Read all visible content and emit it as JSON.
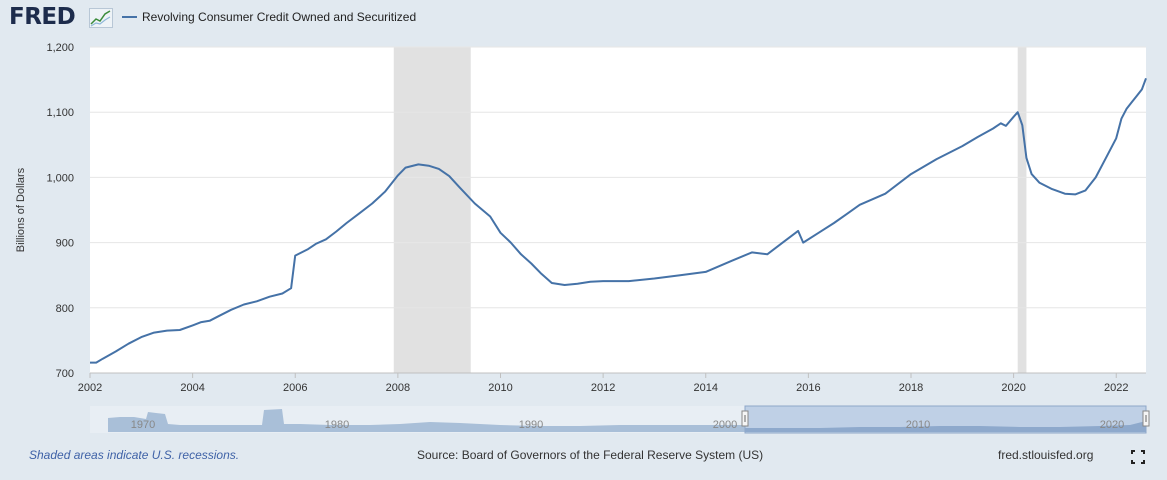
{
  "header": {
    "logo_text": "FRED",
    "logo_icon": "line-graph-icon",
    "legend_label": "Revolving Consumer Credit Owned and Securitized",
    "series_color": "#4572a7"
  },
  "footer": {
    "recession_note": "Shaded areas indicate U.S. recessions.",
    "source": "Source: Board of Governors of the Federal Reserve System (US)",
    "url": "fred.stlouisfed.org",
    "fullscreen_icon": "fullscreen-icon"
  },
  "navigator": {
    "tick_labels": [
      "1970",
      "1980",
      "1990",
      "2000",
      "2010",
      "2020"
    ]
  },
  "chart_data": {
    "type": "line",
    "title": "",
    "xlabel": "",
    "ylabel": "Billions of Dollars",
    "xlim": [
      2002.0,
      2022.58
    ],
    "ylim": [
      700,
      1200
    ],
    "x_ticks": [
      2002,
      2004,
      2006,
      2008,
      2010,
      2012,
      2014,
      2016,
      2018,
      2020,
      2022
    ],
    "y_ticks": [
      700,
      800,
      900,
      1000,
      1100,
      1200
    ],
    "y_tick_labels": [
      "700",
      "800",
      "900",
      "1,000",
      "1,100",
      "1,200"
    ],
    "grid": true,
    "legend": "top-left",
    "recessions": [
      [
        2007.92,
        2009.42
      ],
      [
        2020.08,
        2020.25
      ]
    ],
    "series": [
      {
        "name": "Revolving Consumer Credit Owned and Securitized",
        "color": "#4572a7",
        "x": [
          2002.0,
          2002.12,
          2002.25,
          2002.5,
          2002.75,
          2003.0,
          2003.25,
          2003.5,
          2003.75,
          2004.0,
          2004.17,
          2004.33,
          2004.5,
          2004.75,
          2005.0,
          2005.25,
          2005.5,
          2005.75,
          2005.92,
          2006.0,
          2006.25,
          2006.4,
          2006.6,
          2006.8,
          2007.0,
          2007.25,
          2007.5,
          2007.75,
          2008.0,
          2008.15,
          2008.4,
          2008.6,
          2008.8,
          2009.0,
          2009.2,
          2009.5,
          2009.8,
          2010.0,
          2010.2,
          2010.4,
          2010.6,
          2010.8,
          2011.0,
          2011.25,
          2011.5,
          2011.75,
          2012.0,
          2012.5,
          2013.0,
          2013.5,
          2014.0,
          2014.5,
          2014.9,
          2015.2,
          2015.5,
          2015.8,
          2015.9,
          2016.2,
          2016.5,
          2016.75,
          2017.0,
          2017.5,
          2018.0,
          2018.5,
          2019.0,
          2019.3,
          2019.6,
          2019.75,
          2019.85,
          2020.0,
          2020.08,
          2020.17,
          2020.25,
          2020.35,
          2020.5,
          2020.75,
          2021.0,
          2021.2,
          2021.4,
          2021.6,
          2021.8,
          2022.0,
          2022.1,
          2022.2,
          2022.3,
          2022.4,
          2022.5,
          2022.58
        ],
        "values": [
          716,
          716,
          722,
          733,
          745,
          755,
          762,
          765,
          766,
          773,
          778,
          780,
          787,
          797,
          805,
          810,
          817,
          822,
          830,
          880,
          890,
          898,
          905,
          917,
          930,
          945,
          960,
          978,
          1003,
          1015,
          1020,
          1018,
          1013,
          1002,
          985,
          960,
          940,
          915,
          900,
          882,
          868,
          852,
          838,
          835,
          837,
          840,
          841,
          841,
          845,
          850,
          855,
          872,
          885,
          882,
          900,
          918,
          900,
          915,
          930,
          944,
          958,
          975,
          1005,
          1028,
          1048,
          1062,
          1075,
          1083,
          1079,
          1093,
          1100,
          1080,
          1030,
          1005,
          992,
          982,
          975,
          974,
          980,
          1000,
          1030,
          1060,
          1090,
          1105,
          1115,
          1125,
          1135,
          1152
        ]
      }
    ]
  }
}
